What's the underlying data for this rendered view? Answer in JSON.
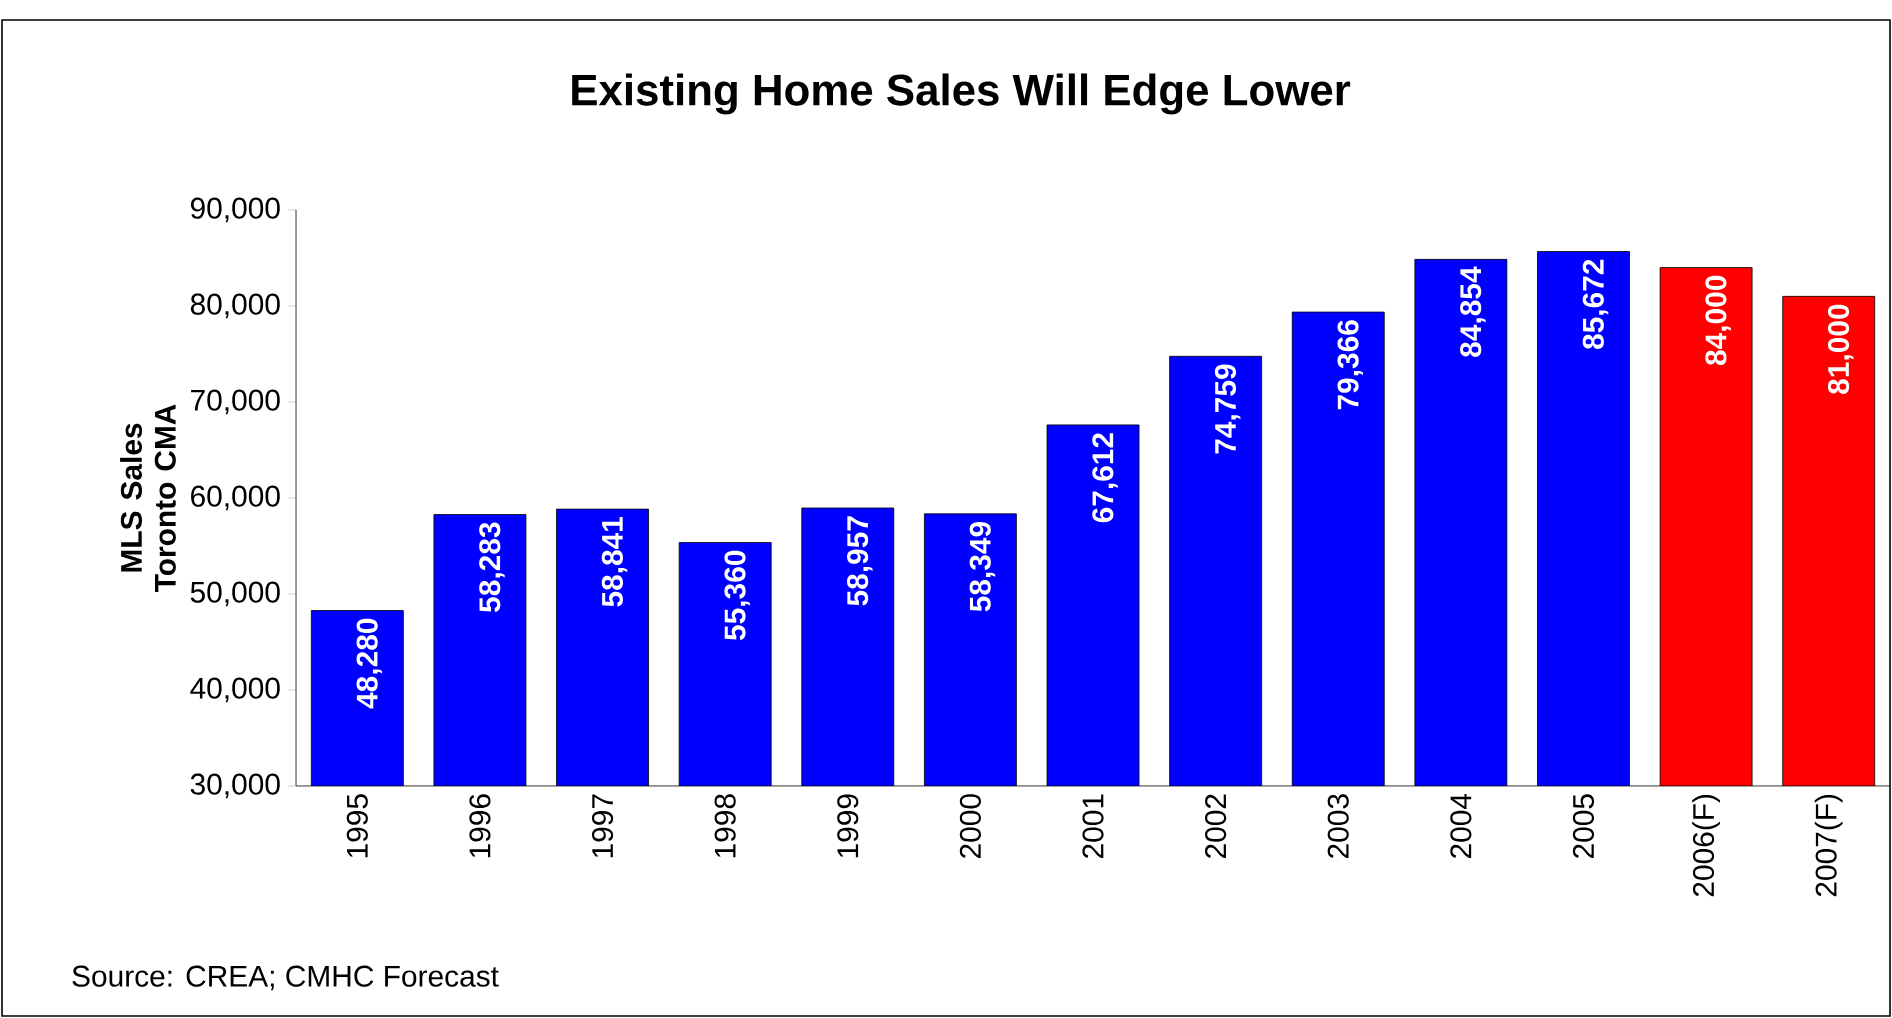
{
  "chart_data": {
    "type": "bar",
    "title": "Existing Home Sales Will Edge Lower",
    "ylabel": "MLS Sales Toronto CMA",
    "categories": [
      "1995",
      "1996",
      "1997",
      "1998",
      "1999",
      "2000",
      "2001",
      "2002",
      "2003",
      "2004",
      "2005",
      "2006(F)",
      "2007(F)"
    ],
    "values": [
      48280,
      58283,
      58841,
      55360,
      58957,
      58349,
      67612,
      74759,
      79366,
      84854,
      85672,
      84000,
      81000
    ],
    "value_labels": [
      "48,280",
      "58,283",
      "58,841",
      "55,360",
      "58,957",
      "58,349",
      "67,612",
      "74,759",
      "79,366",
      "84,854",
      "85,672",
      "84,000",
      "81,000"
    ],
    "colors": [
      "#0000ff",
      "#0000ff",
      "#0000ff",
      "#0000ff",
      "#0000ff",
      "#0000ff",
      "#0000ff",
      "#0000ff",
      "#0000ff",
      "#0000ff",
      "#0000ff",
      "#ff0000",
      "#ff0000"
    ],
    "ylim": [
      30000,
      90000
    ],
    "yticks": [
      {
        "value": 30000,
        "label": "30,000"
      },
      {
        "value": 40000,
        "label": "40,000"
      },
      {
        "value": 50000,
        "label": "50,000"
      },
      {
        "value": 60000,
        "label": "60,000"
      },
      {
        "value": 70000,
        "label": "70,000"
      },
      {
        "value": 80000,
        "label": "80,000"
      },
      {
        "value": 90000,
        "label": "90,000"
      }
    ],
    "annotations": [
      "Source: CREA; CMHC Forecast"
    ]
  }
}
